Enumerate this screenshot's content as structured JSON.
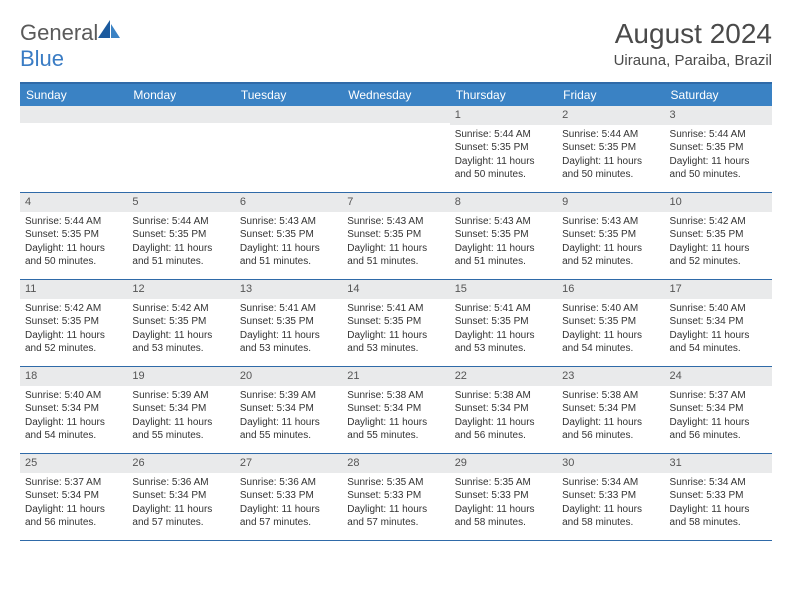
{
  "logo": {
    "part1": "General",
    "part2": "Blue"
  },
  "title": "August 2024",
  "location": "Uirauna, Paraiba, Brazil",
  "colors": {
    "header_bg": "#3a82c4",
    "header_text": "#ffffff",
    "border": "#2f6aa8",
    "daynum_bg": "#e9eaeb",
    "text": "#333333",
    "page_bg": "#ffffff"
  },
  "days_of_week": [
    "Sunday",
    "Monday",
    "Tuesday",
    "Wednesday",
    "Thursday",
    "Friday",
    "Saturday"
  ],
  "weeks": [
    [
      {
        "n": "",
        "sr": "",
        "ss": "",
        "dl1": "",
        "dl2": ""
      },
      {
        "n": "",
        "sr": "",
        "ss": "",
        "dl1": "",
        "dl2": ""
      },
      {
        "n": "",
        "sr": "",
        "ss": "",
        "dl1": "",
        "dl2": ""
      },
      {
        "n": "",
        "sr": "",
        "ss": "",
        "dl1": "",
        "dl2": ""
      },
      {
        "n": "1",
        "sr": "Sunrise: 5:44 AM",
        "ss": "Sunset: 5:35 PM",
        "dl1": "Daylight: 11 hours",
        "dl2": "and 50 minutes."
      },
      {
        "n": "2",
        "sr": "Sunrise: 5:44 AM",
        "ss": "Sunset: 5:35 PM",
        "dl1": "Daylight: 11 hours",
        "dl2": "and 50 minutes."
      },
      {
        "n": "3",
        "sr": "Sunrise: 5:44 AM",
        "ss": "Sunset: 5:35 PM",
        "dl1": "Daylight: 11 hours",
        "dl2": "and 50 minutes."
      }
    ],
    [
      {
        "n": "4",
        "sr": "Sunrise: 5:44 AM",
        "ss": "Sunset: 5:35 PM",
        "dl1": "Daylight: 11 hours",
        "dl2": "and 50 minutes."
      },
      {
        "n": "5",
        "sr": "Sunrise: 5:44 AM",
        "ss": "Sunset: 5:35 PM",
        "dl1": "Daylight: 11 hours",
        "dl2": "and 51 minutes."
      },
      {
        "n": "6",
        "sr": "Sunrise: 5:43 AM",
        "ss": "Sunset: 5:35 PM",
        "dl1": "Daylight: 11 hours",
        "dl2": "and 51 minutes."
      },
      {
        "n": "7",
        "sr": "Sunrise: 5:43 AM",
        "ss": "Sunset: 5:35 PM",
        "dl1": "Daylight: 11 hours",
        "dl2": "and 51 minutes."
      },
      {
        "n": "8",
        "sr": "Sunrise: 5:43 AM",
        "ss": "Sunset: 5:35 PM",
        "dl1": "Daylight: 11 hours",
        "dl2": "and 51 minutes."
      },
      {
        "n": "9",
        "sr": "Sunrise: 5:43 AM",
        "ss": "Sunset: 5:35 PM",
        "dl1": "Daylight: 11 hours",
        "dl2": "and 52 minutes."
      },
      {
        "n": "10",
        "sr": "Sunrise: 5:42 AM",
        "ss": "Sunset: 5:35 PM",
        "dl1": "Daylight: 11 hours",
        "dl2": "and 52 minutes."
      }
    ],
    [
      {
        "n": "11",
        "sr": "Sunrise: 5:42 AM",
        "ss": "Sunset: 5:35 PM",
        "dl1": "Daylight: 11 hours",
        "dl2": "and 52 minutes."
      },
      {
        "n": "12",
        "sr": "Sunrise: 5:42 AM",
        "ss": "Sunset: 5:35 PM",
        "dl1": "Daylight: 11 hours",
        "dl2": "and 53 minutes."
      },
      {
        "n": "13",
        "sr": "Sunrise: 5:41 AM",
        "ss": "Sunset: 5:35 PM",
        "dl1": "Daylight: 11 hours",
        "dl2": "and 53 minutes."
      },
      {
        "n": "14",
        "sr": "Sunrise: 5:41 AM",
        "ss": "Sunset: 5:35 PM",
        "dl1": "Daylight: 11 hours",
        "dl2": "and 53 minutes."
      },
      {
        "n": "15",
        "sr": "Sunrise: 5:41 AM",
        "ss": "Sunset: 5:35 PM",
        "dl1": "Daylight: 11 hours",
        "dl2": "and 53 minutes."
      },
      {
        "n": "16",
        "sr": "Sunrise: 5:40 AM",
        "ss": "Sunset: 5:35 PM",
        "dl1": "Daylight: 11 hours",
        "dl2": "and 54 minutes."
      },
      {
        "n": "17",
        "sr": "Sunrise: 5:40 AM",
        "ss": "Sunset: 5:34 PM",
        "dl1": "Daylight: 11 hours",
        "dl2": "and 54 minutes."
      }
    ],
    [
      {
        "n": "18",
        "sr": "Sunrise: 5:40 AM",
        "ss": "Sunset: 5:34 PM",
        "dl1": "Daylight: 11 hours",
        "dl2": "and 54 minutes."
      },
      {
        "n": "19",
        "sr": "Sunrise: 5:39 AM",
        "ss": "Sunset: 5:34 PM",
        "dl1": "Daylight: 11 hours",
        "dl2": "and 55 minutes."
      },
      {
        "n": "20",
        "sr": "Sunrise: 5:39 AM",
        "ss": "Sunset: 5:34 PM",
        "dl1": "Daylight: 11 hours",
        "dl2": "and 55 minutes."
      },
      {
        "n": "21",
        "sr": "Sunrise: 5:38 AM",
        "ss": "Sunset: 5:34 PM",
        "dl1": "Daylight: 11 hours",
        "dl2": "and 55 minutes."
      },
      {
        "n": "22",
        "sr": "Sunrise: 5:38 AM",
        "ss": "Sunset: 5:34 PM",
        "dl1": "Daylight: 11 hours",
        "dl2": "and 56 minutes."
      },
      {
        "n": "23",
        "sr": "Sunrise: 5:38 AM",
        "ss": "Sunset: 5:34 PM",
        "dl1": "Daylight: 11 hours",
        "dl2": "and 56 minutes."
      },
      {
        "n": "24",
        "sr": "Sunrise: 5:37 AM",
        "ss": "Sunset: 5:34 PM",
        "dl1": "Daylight: 11 hours",
        "dl2": "and 56 minutes."
      }
    ],
    [
      {
        "n": "25",
        "sr": "Sunrise: 5:37 AM",
        "ss": "Sunset: 5:34 PM",
        "dl1": "Daylight: 11 hours",
        "dl2": "and 56 minutes."
      },
      {
        "n": "26",
        "sr": "Sunrise: 5:36 AM",
        "ss": "Sunset: 5:34 PM",
        "dl1": "Daylight: 11 hours",
        "dl2": "and 57 minutes."
      },
      {
        "n": "27",
        "sr": "Sunrise: 5:36 AM",
        "ss": "Sunset: 5:33 PM",
        "dl1": "Daylight: 11 hours",
        "dl2": "and 57 minutes."
      },
      {
        "n": "28",
        "sr": "Sunrise: 5:35 AM",
        "ss": "Sunset: 5:33 PM",
        "dl1": "Daylight: 11 hours",
        "dl2": "and 57 minutes."
      },
      {
        "n": "29",
        "sr": "Sunrise: 5:35 AM",
        "ss": "Sunset: 5:33 PM",
        "dl1": "Daylight: 11 hours",
        "dl2": "and 58 minutes."
      },
      {
        "n": "30",
        "sr": "Sunrise: 5:34 AM",
        "ss": "Sunset: 5:33 PM",
        "dl1": "Daylight: 11 hours",
        "dl2": "and 58 minutes."
      },
      {
        "n": "31",
        "sr": "Sunrise: 5:34 AM",
        "ss": "Sunset: 5:33 PM",
        "dl1": "Daylight: 11 hours",
        "dl2": "and 58 minutes."
      }
    ]
  ]
}
